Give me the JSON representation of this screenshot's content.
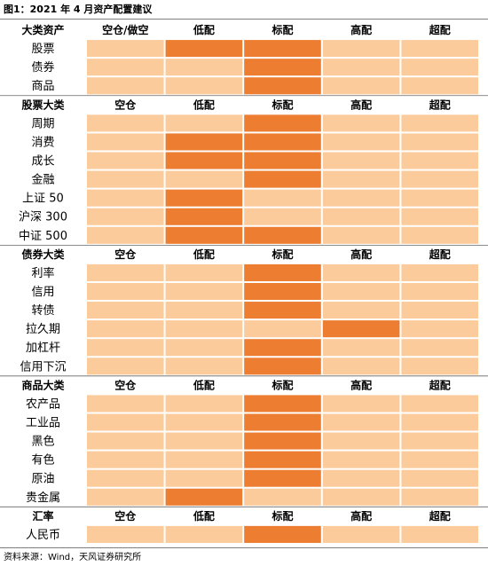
{
  "title": "图1：2021 年 4 月资产配置建议",
  "sections": [
    {
      "title": "大类资产",
      "columns": [
        "空仓/做空",
        "低配",
        "标配",
        "高配",
        "超配"
      ],
      "rows": [
        {
          "label": "股票",
          "highlight": [
            1,
            2
          ]
        },
        {
          "label": "债券",
          "highlight": [
            2
          ]
        },
        {
          "label": "商品",
          "highlight": [
            2
          ]
        }
      ]
    },
    {
      "title": "股票大类",
      "columns": [
        "空仓",
        "低配",
        "标配",
        "高配",
        "超配"
      ],
      "rows": [
        {
          "label": "周期",
          "highlight": [
            2
          ]
        },
        {
          "label": "消费",
          "highlight": [
            1,
            2
          ]
        },
        {
          "label": "成长",
          "highlight": [
            1,
            2
          ]
        },
        {
          "label": "金融",
          "highlight": [
            2
          ]
        },
        {
          "label": "上证 50",
          "highlight": [
            1
          ]
        },
        {
          "label": "沪深 300",
          "highlight": [
            1
          ]
        },
        {
          "label": "中证 500",
          "highlight": [
            1,
            2
          ]
        }
      ]
    },
    {
      "title": "债券大类",
      "columns": [
        "空仓",
        "低配",
        "标配",
        "高配",
        "超配"
      ],
      "rows": [
        {
          "label": "利率",
          "highlight": [
            2
          ]
        },
        {
          "label": "信用",
          "highlight": [
            2
          ]
        },
        {
          "label": "转债",
          "highlight": [
            2
          ]
        },
        {
          "label": "拉久期",
          "highlight": [
            3
          ]
        },
        {
          "label": "加杠杆",
          "highlight": [
            2
          ]
        },
        {
          "label": "信用下沉",
          "highlight": [
            2
          ]
        }
      ]
    },
    {
      "title": "商品大类",
      "columns": [
        "空仓",
        "低配",
        "标配",
        "高配",
        "超配"
      ],
      "rows": [
        {
          "label": "农产品",
          "highlight": [
            2
          ]
        },
        {
          "label": "工业品",
          "highlight": [
            2
          ]
        },
        {
          "label": "黑色",
          "highlight": [
            2
          ]
        },
        {
          "label": "有色",
          "highlight": [
            2
          ]
        },
        {
          "label": "原油",
          "highlight": [
            2
          ]
        },
        {
          "label": "贵金属",
          "highlight": [
            1
          ]
        }
      ]
    },
    {
      "title": "汇率",
      "columns": [
        "空仓",
        "低配",
        "标配",
        "高配",
        "超配"
      ],
      "rows": [
        {
          "label": "人民币",
          "highlight": [
            2
          ]
        }
      ]
    }
  ],
  "source": "资料来源：Wind，天风证券研究所"
}
